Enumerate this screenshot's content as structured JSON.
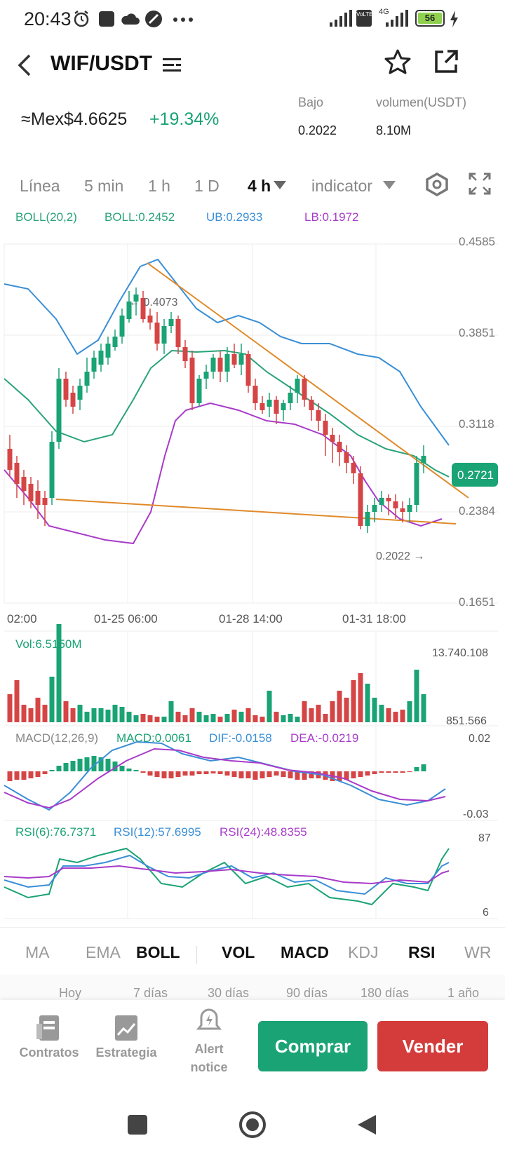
{
  "status_bar": {
    "time": "20:43",
    "battery": "56",
    "icons": [
      "alarm-icon",
      "app-square-icon",
      "cloud-icon",
      "compass-icon",
      "more-dots-icon",
      "signal-icon",
      "volte-icon",
      "4g-signal-icon",
      "battery-icon",
      "charging-icon"
    ],
    "volte_label": "VoLTE",
    "network": "4G"
  },
  "header": {
    "pair": "WIF/USDT",
    "icons": [
      "back-arrow-icon",
      "pair-list-icon",
      "star-icon",
      "share-external-icon"
    ]
  },
  "price_block": {
    "price": "≈Mex$4.6625",
    "change": "+19.34%",
    "stats": [
      {
        "label": "Bajo",
        "value": "0.2022"
      },
      {
        "label": "volumen(USDT)",
        "value": "8.10M"
      }
    ]
  },
  "timeframes": {
    "items": [
      "Línea",
      "5 min",
      "1 h",
      "1 D",
      "4 h",
      "indicator"
    ],
    "active": "4 h",
    "icons": [
      "settings-hexagon-icon",
      "fullscreen-icon"
    ]
  },
  "boll_legend": {
    "name": "BOLL(20,2)",
    "boll": "BOLL:0.2452",
    "ub": "UB:0.2933",
    "lb": "LB:0.1972"
  },
  "colors": {
    "up": "#1aa374",
    "down": "#d64545",
    "boll": "#2aa37a",
    "ub": "#3a8fd6",
    "lb": "#a83bc9",
    "trend": "#e08a2a"
  },
  "price_axis": [
    "0.4585",
    "0.3851",
    "0.3118",
    "0.2384",
    "0.1651"
  ],
  "current_price_tag": "0.2721",
  "high_marker": "← 0.4073",
  "low_marker": "0.2022 →",
  "time_axis": [
    "02:00",
    "01-25 06:00",
    "01-28 14:00",
    "01-31 18:00"
  ],
  "volume": {
    "label": "Vol:6.5150M",
    "max": "13.740.108",
    "min": "851.566"
  },
  "macd": {
    "name": "MACD(12,26,9)",
    "macd": "MACD:0.0061",
    "dif": "DIF:-0.0158",
    "dea": "DEA:-0.0219",
    "top": "0.02",
    "bottom": "-0.03"
  },
  "rsi": {
    "r6": "RSI(6):76.7371",
    "r12": "RSI(12):57.6995",
    "r24": "RSI(24):48.8355",
    "top": "87",
    "bottom": "6"
  },
  "indicator_tabs": {
    "items": [
      "MA",
      "EMA",
      "BOLL",
      "VOL",
      "MACD",
      "KDJ",
      "RSI",
      "WR"
    ],
    "active": [
      "BOLL",
      "VOL",
      "MACD",
      "RSI"
    ]
  },
  "ranges": [
    "Hoy",
    "7 días",
    "30 días",
    "90 días",
    "180 días",
    "1 año"
  ],
  "bottom_nav": {
    "contratos": "Contratos",
    "estrategia": "Estrategia",
    "alert_line1": "Alert",
    "alert_line2": "notice",
    "buy": "Comprar",
    "sell": "Vender",
    "buy_color": "#1aa374",
    "sell_color": "#d43c3c"
  },
  "system_nav": [
    "recent-apps-icon",
    "home-icon",
    "back-icon"
  ],
  "chart_data": {
    "type": "candlestick",
    "y_axis_range": [
      0.1651,
      0.4585
    ],
    "note_values": {
      "current": 0.2721,
      "high": 0.4073,
      "low": 0.2022
    },
    "x_ticks": [
      "02:00",
      "01-25 06:00",
      "01-28 14:00",
      "01-31 18:00"
    ]
  }
}
